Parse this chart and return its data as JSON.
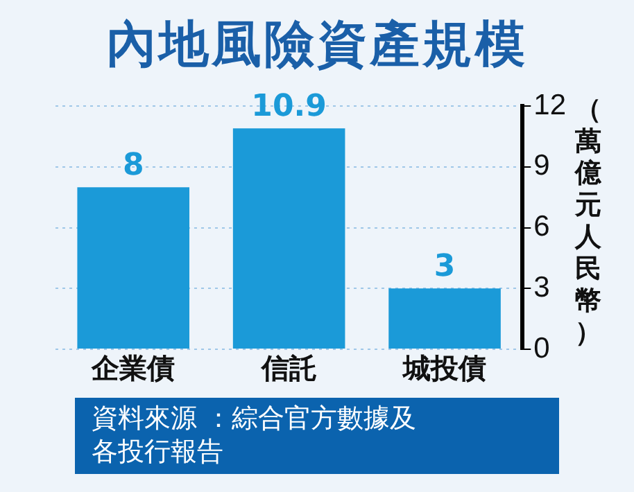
{
  "chart_data": {
    "type": "bar",
    "title": "內地風險資產規模",
    "ylabel": "（萬億元人民幣）",
    "categories": [
      "企業債",
      "信託",
      "城投債"
    ],
    "values": [
      8,
      10.9,
      3
    ],
    "color": "#1b9ad8",
    "ylim": [
      0,
      12
    ],
    "yticks": [
      0,
      3,
      6,
      9,
      12
    ],
    "grid": "y",
    "data_labels": true,
    "annotations": [
      "資料來源 ：綜合官方數據及各投行報告"
    ]
  }
}
